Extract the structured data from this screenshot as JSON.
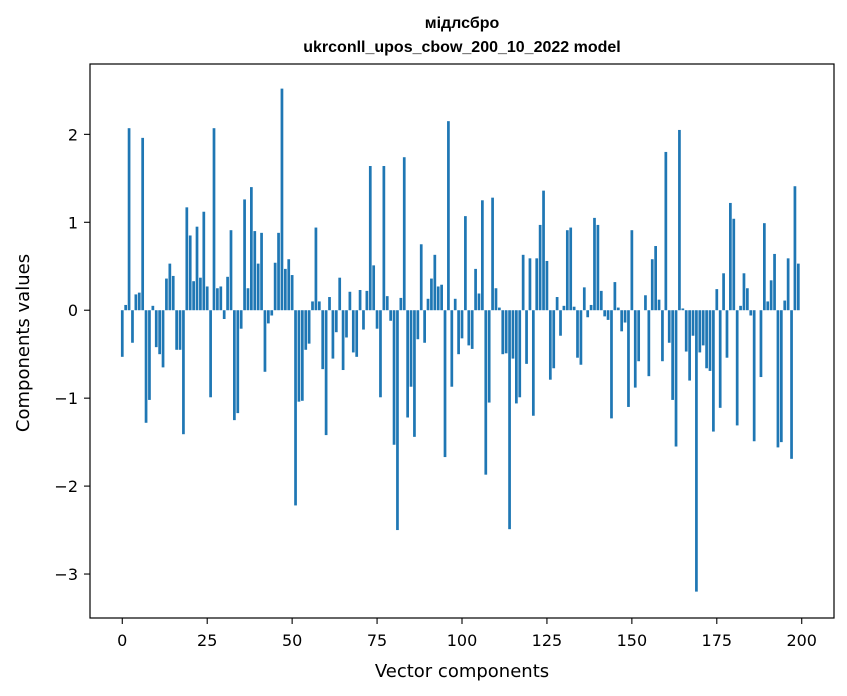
{
  "chart_data": {
    "type": "bar",
    "title": "мідлсбро",
    "subtitle": "ukrconll_upos_cbow_200_10_2022 model",
    "xlabel": "Vector components",
    "ylabel": "Components values",
    "xlim": [
      -9.5,
      209.5
    ],
    "ylim": [
      -3.5,
      2.8
    ],
    "xticks": [
      0,
      25,
      50,
      75,
      100,
      125,
      150,
      175,
      200
    ],
    "yticks": [
      -3,
      -2,
      -1,
      0,
      1,
      2
    ],
    "ytick_labels": [
      "−3",
      "−2",
      "−1",
      "0",
      "1",
      "2"
    ],
    "bar_color": "#1f77b4",
    "x": [
      0,
      1,
      2,
      3,
      4,
      5,
      6,
      7,
      8,
      9,
      10,
      11,
      12,
      13,
      14,
      15,
      16,
      17,
      18,
      19,
      20,
      21,
      22,
      23,
      24,
      25,
      26,
      27,
      28,
      29,
      30,
      31,
      32,
      33,
      34,
      35,
      36,
      37,
      38,
      39,
      40,
      41,
      42,
      43,
      44,
      45,
      46,
      47,
      48,
      49,
      50,
      51,
      52,
      53,
      54,
      55,
      56,
      57,
      58,
      59,
      60,
      61,
      62,
      63,
      64,
      65,
      66,
      67,
      68,
      69,
      70,
      71,
      72,
      73,
      74,
      75,
      76,
      77,
      78,
      79,
      80,
      81,
      82,
      83,
      84,
      85,
      86,
      87,
      88,
      89,
      90,
      91,
      92,
      93,
      94,
      95,
      96,
      97,
      98,
      99,
      100,
      101,
      102,
      103,
      104,
      105,
      106,
      107,
      108,
      109,
      110,
      111,
      112,
      113,
      114,
      115,
      116,
      117,
      118,
      119,
      120,
      121,
      122,
      123,
      124,
      125,
      126,
      127,
      128,
      129,
      130,
      131,
      132,
      133,
      134,
      135,
      136,
      137,
      138,
      139,
      140,
      141,
      142,
      143,
      144,
      145,
      146,
      147,
      148,
      149,
      150,
      151,
      152,
      153,
      154,
      155,
      156,
      157,
      158,
      159,
      160,
      161,
      162,
      163,
      164,
      165,
      166,
      167,
      168,
      169,
      170,
      171,
      172,
      173,
      174,
      175,
      176,
      177,
      178,
      179,
      180,
      181,
      182,
      183,
      184,
      185,
      186,
      187,
      188,
      189,
      190,
      191,
      192,
      193,
      194,
      195,
      196,
      197,
      198,
      199
    ],
    "values": [
      -0.53,
      0.06,
      2.07,
      -0.37,
      0.18,
      0.2,
      1.96,
      -1.28,
      -1.02,
      0.05,
      -0.42,
      -0.5,
      -0.65,
      0.36,
      0.53,
      0.39,
      -0.45,
      -0.45,
      -1.41,
      1.17,
      0.85,
      0.33,
      0.95,
      0.37,
      1.12,
      0.27,
      -0.99,
      2.07,
      0.25,
      0.27,
      -0.1,
      0.38,
      0.91,
      -1.25,
      -1.17,
      -0.21,
      1.26,
      0.25,
      1.4,
      0.9,
      0.53,
      0.88,
      -0.7,
      -0.15,
      -0.06,
      0.54,
      0.88,
      2.52,
      0.47,
      0.58,
      0.4,
      -2.22,
      -1.04,
      -1.03,
      -0.45,
      -0.38,
      0.1,
      0.94,
      0.1,
      -0.67,
      -1.42,
      0.15,
      -0.55,
      -0.25,
      0.37,
      -0.68,
      -0.31,
      0.21,
      -0.48,
      -0.53,
      0.23,
      -0.22,
      0.22,
      1.64,
      0.51,
      -0.21,
      -0.99,
      1.64,
      0.16,
      -0.12,
      -1.53,
      -2.5,
      0.14,
      1.74,
      -1.22,
      -0.87,
      -1.44,
      -0.33,
      0.75,
      -0.37,
      0.13,
      0.36,
      0.63,
      0.27,
      0.29,
      -1.67,
      2.15,
      -0.87,
      0.13,
      -0.5,
      -0.32,
      1.07,
      -0.4,
      -0.44,
      0.47,
      0.19,
      1.25,
      -1.87,
      -1.05,
      1.28,
      0.25,
      0.03,
      -0.5,
      -0.49,
      -2.49,
      -0.55,
      -1.06,
      -0.99,
      0.63,
      -0.61,
      0.59,
      -1.2,
      0.59,
      0.97,
      1.36,
      0.56,
      -0.79,
      -0.66,
      0.15,
      -0.29,
      0.05,
      0.91,
      0.94,
      0.04,
      -0.54,
      -0.62,
      0.26,
      -0.08,
      0.06,
      1.05,
      0.97,
      0.22,
      -0.07,
      -0.11,
      -1.23,
      0.32,
      0.03,
      -0.24,
      -0.14,
      -1.1,
      0.91,
      -0.88,
      -0.58,
      0.0,
      0.17,
      -0.75,
      0.58,
      0.73,
      0.12,
      -0.58,
      1.8,
      -0.37,
      -1.02,
      -1.55,
      2.05,
      0.02,
      -0.47,
      -0.8,
      -0.29,
      -3.2,
      -0.48,
      -0.4,
      -0.66,
      -0.69,
      -1.38,
      0.24,
      -1.11,
      0.42,
      -0.54,
      1.22,
      1.04,
      -1.31,
      0.05,
      0.42,
      0.25,
      -0.06,
      -1.49,
      0.0,
      -0.76,
      0.99,
      0.1,
      0.34,
      0.64,
      -1.56,
      -1.5,
      0.11,
      0.59,
      -1.69,
      1.41,
      0.53
    ]
  }
}
